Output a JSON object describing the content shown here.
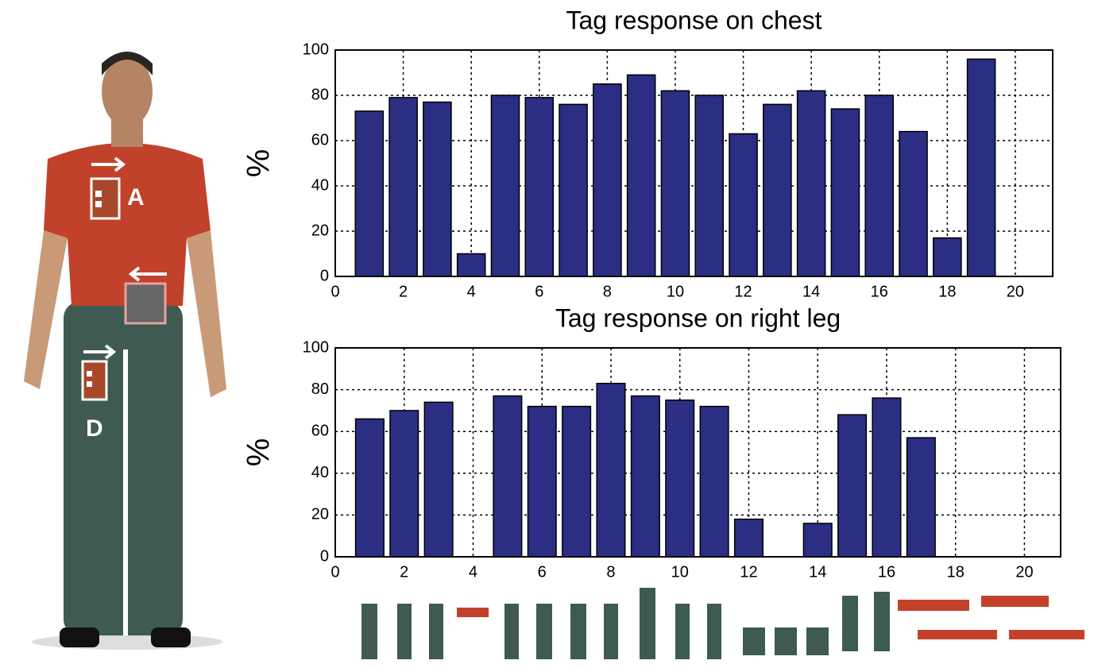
{
  "chart_data": [
    {
      "type": "bar",
      "title": "Tag response on chest",
      "y_label": "%",
      "x": [
        1,
        2,
        3,
        4,
        5,
        6,
        7,
        8,
        9,
        10,
        11,
        12,
        13,
        14,
        15,
        16,
        17,
        18,
        19
      ],
      "values": [
        73,
        79,
        77,
        10,
        80,
        79,
        76,
        85,
        89,
        82,
        80,
        63,
        76,
        82,
        74,
        80,
        64,
        17,
        96
      ],
      "color": "#2b2e83",
      "xlim": [
        0,
        21.1
      ],
      "ylim": [
        0,
        100
      ],
      "xticks": [
        0,
        2,
        4,
        6,
        8,
        10,
        12,
        14,
        16,
        18,
        20
      ],
      "yticks": [
        0,
        20,
        40,
        60,
        80,
        100
      ],
      "grid": true
    },
    {
      "type": "bar",
      "title": "Tag response on right leg",
      "y_label": "%",
      "x": [
        1,
        2,
        3,
        4,
        5,
        6,
        7,
        8,
        9,
        10,
        11,
        12,
        13,
        14,
        15,
        16,
        17,
        18,
        19
      ],
      "values": [
        66,
        70,
        74,
        0,
        77,
        72,
        72,
        83,
        77,
        75,
        72,
        18,
        0,
        16,
        68,
        76,
        57,
        0,
        0
      ],
      "color": "#2b2e83",
      "xlim": [
        0,
        21.05
      ],
      "ylim": [
        0,
        100
      ],
      "xticks": [
        0,
        2,
        4,
        6,
        8,
        10,
        12,
        14,
        16,
        18,
        20
      ],
      "yticks": [
        0,
        20,
        40,
        60,
        80,
        100
      ],
      "grid": true
    }
  ],
  "figure": {
    "tag_labels": [
      "A",
      "D"
    ]
  }
}
